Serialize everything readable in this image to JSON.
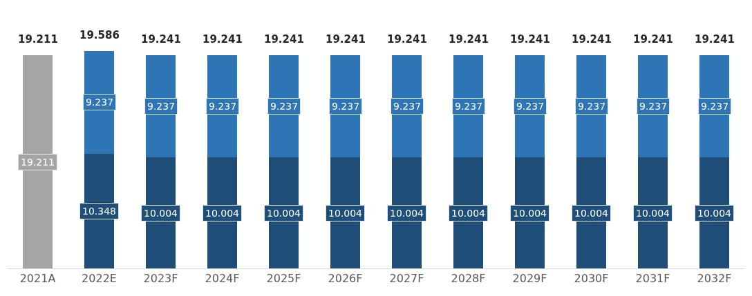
{
  "chart_data": {
    "type": "bar",
    "stacked": true,
    "data_labels": true,
    "tick_labels": "x",
    "categories": [
      "2021A",
      "2022E",
      "2023F",
      "2024F",
      "2025F",
      "2026F",
      "2027F",
      "2028F",
      "2029F",
      "2030F",
      "2031F",
      "2032F"
    ],
    "series": [
      {
        "color": "#a5a5a5",
        "values": [
          19.211,
          null,
          null,
          null,
          null,
          null,
          null,
          null,
          null,
          null,
          null,
          null
        ]
      },
      {
        "color": "#1f4e79",
        "values": [
          null,
          10.348,
          10.004,
          10.004,
          10.004,
          10.004,
          10.004,
          10.004,
          10.004,
          10.004,
          10.004,
          10.004
        ]
      },
      {
        "color": "#2e75b6",
        "values": [
          null,
          9.237,
          9.237,
          9.237,
          9.237,
          9.237,
          9.237,
          9.237,
          9.237,
          9.237,
          9.237,
          9.237
        ]
      }
    ],
    "totals": [
      "19.211",
      "19.586",
      "19.241",
      "19.241",
      "19.241",
      "19.241",
      "19.241",
      "19.241",
      "19.241",
      "19.241",
      "19.241",
      "19.241"
    ]
  }
}
